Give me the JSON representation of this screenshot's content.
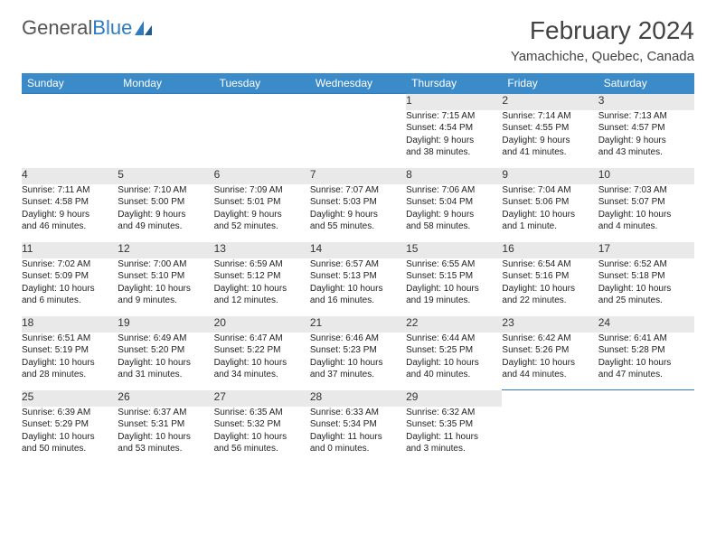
{
  "logo": {
    "text_gray": "General",
    "text_blue": "Blue"
  },
  "title": "February 2024",
  "location": "Yamachiche, Quebec, Canada",
  "colors": {
    "header_bg": "#3b8bc8",
    "header_text": "#ffffff",
    "day_bg": "#e9e9e9",
    "rule": "#2f7bbf",
    "text": "#333333"
  },
  "typography": {
    "title_fontsize": 28,
    "location_fontsize": 15,
    "dayheader_fontsize": 12,
    "body_fontsize": 10
  },
  "day_headers": [
    "Sunday",
    "Monday",
    "Tuesday",
    "Wednesday",
    "Thursday",
    "Friday",
    "Saturday"
  ],
  "weeks": [
    [
      null,
      null,
      null,
      null,
      {
        "n": "1",
        "sr": "Sunrise: 7:15 AM",
        "ss": "Sunset: 4:54 PM",
        "d1": "Daylight: 9 hours",
        "d2": "and 38 minutes."
      },
      {
        "n": "2",
        "sr": "Sunrise: 7:14 AM",
        "ss": "Sunset: 4:55 PM",
        "d1": "Daylight: 9 hours",
        "d2": "and 41 minutes."
      },
      {
        "n": "3",
        "sr": "Sunrise: 7:13 AM",
        "ss": "Sunset: 4:57 PM",
        "d1": "Daylight: 9 hours",
        "d2": "and 43 minutes."
      }
    ],
    [
      {
        "n": "4",
        "sr": "Sunrise: 7:11 AM",
        "ss": "Sunset: 4:58 PM",
        "d1": "Daylight: 9 hours",
        "d2": "and 46 minutes."
      },
      {
        "n": "5",
        "sr": "Sunrise: 7:10 AM",
        "ss": "Sunset: 5:00 PM",
        "d1": "Daylight: 9 hours",
        "d2": "and 49 minutes."
      },
      {
        "n": "6",
        "sr": "Sunrise: 7:09 AM",
        "ss": "Sunset: 5:01 PM",
        "d1": "Daylight: 9 hours",
        "d2": "and 52 minutes."
      },
      {
        "n": "7",
        "sr": "Sunrise: 7:07 AM",
        "ss": "Sunset: 5:03 PM",
        "d1": "Daylight: 9 hours",
        "d2": "and 55 minutes."
      },
      {
        "n": "8",
        "sr": "Sunrise: 7:06 AM",
        "ss": "Sunset: 5:04 PM",
        "d1": "Daylight: 9 hours",
        "d2": "and 58 minutes."
      },
      {
        "n": "9",
        "sr": "Sunrise: 7:04 AM",
        "ss": "Sunset: 5:06 PM",
        "d1": "Daylight: 10 hours",
        "d2": "and 1 minute."
      },
      {
        "n": "10",
        "sr": "Sunrise: 7:03 AM",
        "ss": "Sunset: 5:07 PM",
        "d1": "Daylight: 10 hours",
        "d2": "and 4 minutes."
      }
    ],
    [
      {
        "n": "11",
        "sr": "Sunrise: 7:02 AM",
        "ss": "Sunset: 5:09 PM",
        "d1": "Daylight: 10 hours",
        "d2": "and 6 minutes."
      },
      {
        "n": "12",
        "sr": "Sunrise: 7:00 AM",
        "ss": "Sunset: 5:10 PM",
        "d1": "Daylight: 10 hours",
        "d2": "and 9 minutes."
      },
      {
        "n": "13",
        "sr": "Sunrise: 6:59 AM",
        "ss": "Sunset: 5:12 PM",
        "d1": "Daylight: 10 hours",
        "d2": "and 12 minutes."
      },
      {
        "n": "14",
        "sr": "Sunrise: 6:57 AM",
        "ss": "Sunset: 5:13 PM",
        "d1": "Daylight: 10 hours",
        "d2": "and 16 minutes."
      },
      {
        "n": "15",
        "sr": "Sunrise: 6:55 AM",
        "ss": "Sunset: 5:15 PM",
        "d1": "Daylight: 10 hours",
        "d2": "and 19 minutes."
      },
      {
        "n": "16",
        "sr": "Sunrise: 6:54 AM",
        "ss": "Sunset: 5:16 PM",
        "d1": "Daylight: 10 hours",
        "d2": "and 22 minutes."
      },
      {
        "n": "17",
        "sr": "Sunrise: 6:52 AM",
        "ss": "Sunset: 5:18 PM",
        "d1": "Daylight: 10 hours",
        "d2": "and 25 minutes."
      }
    ],
    [
      {
        "n": "18",
        "sr": "Sunrise: 6:51 AM",
        "ss": "Sunset: 5:19 PM",
        "d1": "Daylight: 10 hours",
        "d2": "and 28 minutes."
      },
      {
        "n": "19",
        "sr": "Sunrise: 6:49 AM",
        "ss": "Sunset: 5:20 PM",
        "d1": "Daylight: 10 hours",
        "d2": "and 31 minutes."
      },
      {
        "n": "20",
        "sr": "Sunrise: 6:47 AM",
        "ss": "Sunset: 5:22 PM",
        "d1": "Daylight: 10 hours",
        "d2": "and 34 minutes."
      },
      {
        "n": "21",
        "sr": "Sunrise: 6:46 AM",
        "ss": "Sunset: 5:23 PM",
        "d1": "Daylight: 10 hours",
        "d2": "and 37 minutes."
      },
      {
        "n": "22",
        "sr": "Sunrise: 6:44 AM",
        "ss": "Sunset: 5:25 PM",
        "d1": "Daylight: 10 hours",
        "d2": "and 40 minutes."
      },
      {
        "n": "23",
        "sr": "Sunrise: 6:42 AM",
        "ss": "Sunset: 5:26 PM",
        "d1": "Daylight: 10 hours",
        "d2": "and 44 minutes."
      },
      {
        "n": "24",
        "sr": "Sunrise: 6:41 AM",
        "ss": "Sunset: 5:28 PM",
        "d1": "Daylight: 10 hours",
        "d2": "and 47 minutes."
      }
    ],
    [
      {
        "n": "25",
        "sr": "Sunrise: 6:39 AM",
        "ss": "Sunset: 5:29 PM",
        "d1": "Daylight: 10 hours",
        "d2": "and 50 minutes."
      },
      {
        "n": "26",
        "sr": "Sunrise: 6:37 AM",
        "ss": "Sunset: 5:31 PM",
        "d1": "Daylight: 10 hours",
        "d2": "and 53 minutes."
      },
      {
        "n": "27",
        "sr": "Sunrise: 6:35 AM",
        "ss": "Sunset: 5:32 PM",
        "d1": "Daylight: 10 hours",
        "d2": "and 56 minutes."
      },
      {
        "n": "28",
        "sr": "Sunrise: 6:33 AM",
        "ss": "Sunset: 5:34 PM",
        "d1": "Daylight: 11 hours",
        "d2": "and 0 minutes."
      },
      {
        "n": "29",
        "sr": "Sunrise: 6:32 AM",
        "ss": "Sunset: 5:35 PM",
        "d1": "Daylight: 11 hours",
        "d2": "and 3 minutes."
      },
      null,
      null
    ]
  ]
}
